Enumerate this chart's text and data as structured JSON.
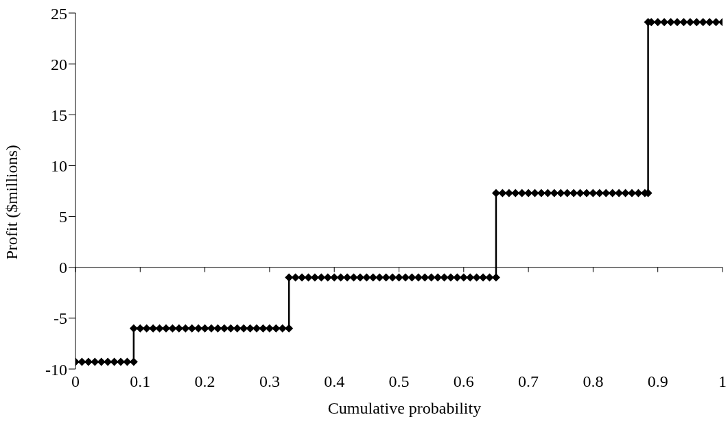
{
  "chart_data": {
    "type": "line",
    "xlabel": "Cumulative probability",
    "ylabel": "Profit ($millions)",
    "x": [
      0,
      0.01,
      0.02,
      0.03,
      0.04,
      0.05,
      0.06,
      0.07,
      0.08,
      0.09,
      0.09,
      0.1,
      0.11,
      0.12,
      0.13,
      0.14,
      0.15,
      0.16,
      0.17,
      0.18,
      0.19,
      0.2,
      0.21,
      0.22,
      0.23,
      0.24,
      0.25,
      0.26,
      0.27,
      0.28,
      0.29,
      0.3,
      0.31,
      0.32,
      0.33,
      0.33,
      0.34,
      0.35,
      0.36,
      0.37,
      0.38,
      0.39,
      0.4,
      0.41,
      0.42,
      0.43,
      0.44,
      0.45,
      0.46,
      0.47,
      0.48,
      0.49,
      0.5,
      0.51,
      0.52,
      0.53,
      0.54,
      0.55,
      0.56,
      0.57,
      0.58,
      0.59,
      0.6,
      0.61,
      0.62,
      0.63,
      0.64,
      0.65,
      0.65,
      0.66,
      0.67,
      0.68,
      0.69,
      0.7,
      0.71,
      0.72,
      0.73,
      0.74,
      0.75,
      0.76,
      0.77,
      0.78,
      0.79,
      0.8,
      0.81,
      0.82,
      0.83,
      0.84,
      0.85,
      0.86,
      0.87,
      0.88,
      0.885,
      0.885,
      0.89,
      0.9,
      0.91,
      0.92,
      0.93,
      0.94,
      0.95,
      0.96,
      0.97,
      0.98,
      0.99,
      1
    ],
    "series": [
      {
        "color": "#000000",
        "values": [
          -9.3,
          -9.3,
          -9.3,
          -9.3,
          -9.3,
          -9.3,
          -9.3,
          -9.3,
          -9.3,
          -9.3,
          -6,
          -6,
          -6,
          -6,
          -6,
          -6,
          -6,
          -6,
          -6,
          -6,
          -6,
          -6,
          -6,
          -6,
          -6,
          -6,
          -6,
          -6,
          -6,
          -6,
          -6,
          -6,
          -6,
          -6,
          -6,
          -1,
          -1,
          -1,
          -1,
          -1,
          -1,
          -1,
          -1,
          -1,
          -1,
          -1,
          -1,
          -1,
          -1,
          -1,
          -1,
          -1,
          -1,
          -1,
          -1,
          -1,
          -1,
          -1,
          -1,
          -1,
          -1,
          -1,
          -1,
          -1,
          -1,
          -1,
          -1,
          -1,
          7.3,
          7.3,
          7.3,
          7.3,
          7.3,
          7.3,
          7.3,
          7.3,
          7.3,
          7.3,
          7.3,
          7.3,
          7.3,
          7.3,
          7.3,
          7.3,
          7.3,
          7.3,
          7.3,
          7.3,
          7.3,
          7.3,
          7.3,
          7.3,
          7.3,
          24.1,
          24.1,
          24.1,
          24.1,
          24.1,
          24.1,
          24.1,
          24.1,
          24.1,
          24.1,
          24.1,
          24.1,
          24.1
        ]
      }
    ],
    "xlim": [
      0,
      1
    ],
    "xticks": [
      0,
      0.1,
      0.2,
      0.3,
      0.4,
      0.5,
      0.6,
      0.7,
      0.8,
      0.9,
      1
    ],
    "ylim": [
      -10,
      25
    ],
    "yticks": [
      -10,
      -5,
      0,
      5,
      10,
      15,
      20,
      25
    ],
    "marker": "diamond",
    "line_style": "solid"
  }
}
